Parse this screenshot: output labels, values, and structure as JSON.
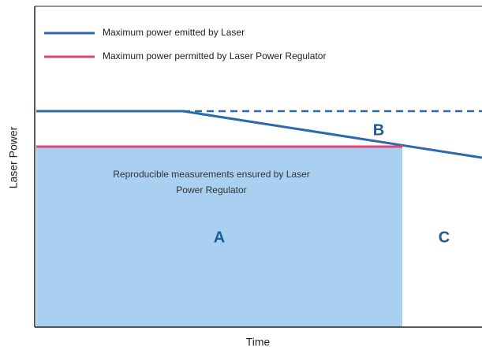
{
  "legend": {
    "items": [
      {
        "label": "Maximum power emitted by Laser",
        "color": "#2a6aa8"
      },
      {
        "label": "Maximum power permitted by Laser Power Regulator",
        "color": "#e0457a"
      }
    ]
  },
  "axes": {
    "y_label": "Laser Power",
    "x_label": "Time"
  },
  "annotation": {
    "lines": [
      "Reproducible measurements ensured by Laser",
      "Power Regulator"
    ]
  },
  "regions": {
    "a": "A",
    "b": "B",
    "c": "C"
  }
}
